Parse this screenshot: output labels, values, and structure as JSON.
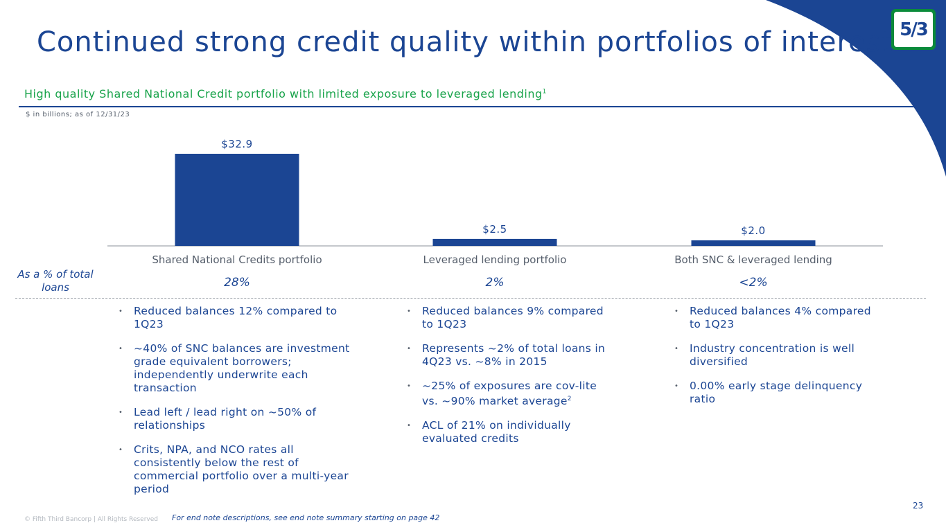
{
  "slide": {
    "title": "Continued strong credit quality within portfolios of interest",
    "subtitle": "High quality Shared National Credit portfolio with limited exposure to leveraged lending",
    "subtitle_footnote": "1",
    "units_note": "$ in billions; as of 12/31/23",
    "logo_text": "5/3",
    "page_number": "23",
    "copyright": "© Fifth Third Bancorp | All Rights Reserved",
    "endnote": "For end note descriptions, see end note summary starting on page 42",
    "accent_color": "#1b4593",
    "green_color": "#18a34a"
  },
  "chart_data": {
    "type": "bar",
    "categories": [
      "Shared National Credits portfolio",
      "Leveraged lending portfolio",
      "Both SNC & leveraged lending"
    ],
    "values": [
      32.9,
      2.5,
      2.0
    ],
    "value_labels": [
      "$32.9",
      "$2.5",
      "$2.0"
    ],
    "title": "High quality Shared National Credit portfolio with limited exposure to leveraged lending",
    "xlabel": "",
    "ylabel": "$ in billions",
    "ylim": [
      0,
      32.9
    ],
    "grid": false,
    "legend": "none"
  },
  "pct_row": {
    "caption": "As a % of total loans",
    "values": [
      "28%",
      "2%",
      "<2%"
    ]
  },
  "columns": [
    {
      "bullets": [
        {
          "text": "Reduced balances 12% compared to 1Q23",
          "sup": ""
        },
        {
          "text": "~40% of SNC balances are investment grade equivalent borrowers; independently underwrite each transaction",
          "sup": ""
        },
        {
          "text": "Lead left / lead right on ~50% of relationships",
          "sup": ""
        },
        {
          "text": "Crits, NPA, and NCO rates all consistently below the rest of commercial portfolio over a multi-year period",
          "sup": ""
        }
      ]
    },
    {
      "bullets": [
        {
          "text": "Reduced balances 9% compared to 1Q23",
          "sup": ""
        },
        {
          "text": "Represents ~2% of total loans in 4Q23 vs. ~8% in 2015",
          "sup": ""
        },
        {
          "text": "~25% of exposures are cov-lite vs. ~90% market average",
          "sup": "2"
        },
        {
          "text": "ACL of 21% on individually evaluated credits",
          "sup": ""
        }
      ]
    },
    {
      "bullets": [
        {
          "text": "Reduced balances 4% compared to 1Q23",
          "sup": ""
        },
        {
          "text": "Industry concentration is well diversified",
          "sup": ""
        },
        {
          "text": "0.00% early stage delinquency ratio",
          "sup": ""
        }
      ]
    }
  ]
}
